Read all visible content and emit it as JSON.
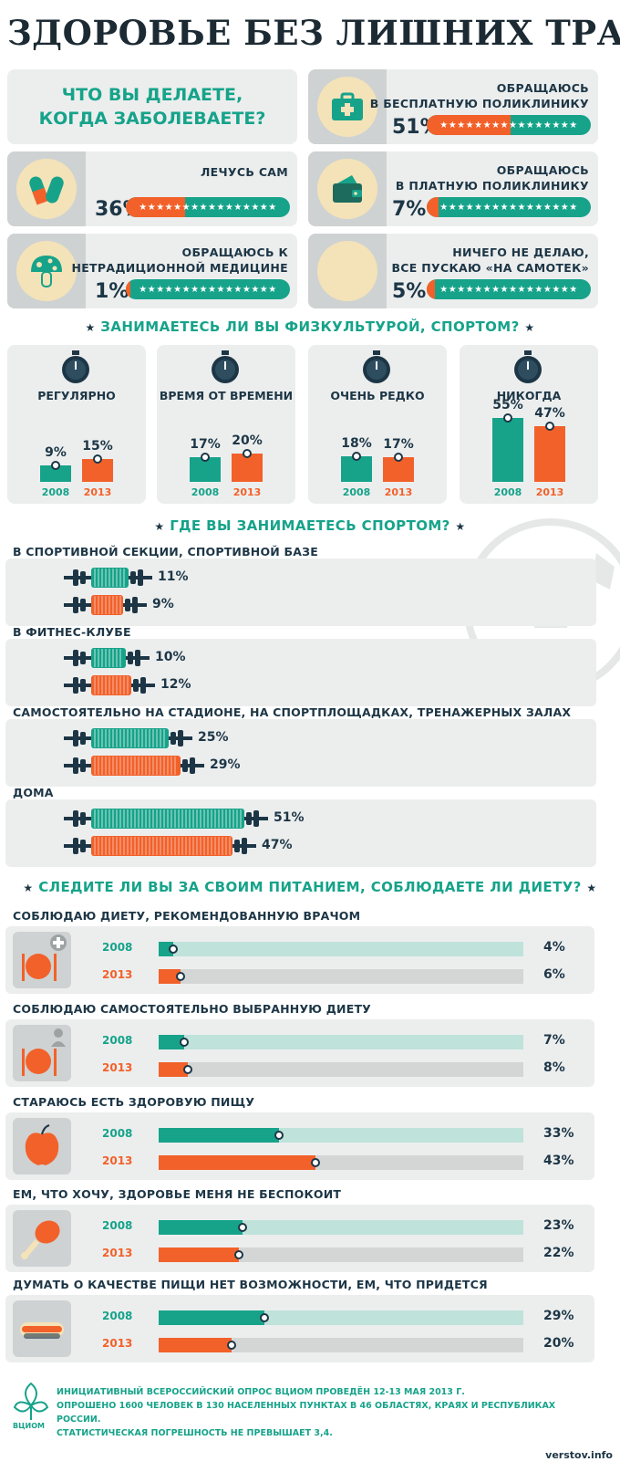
{
  "title": "ЗДОРОВЬЕ БЕЗ ЛИШНИХ ТРАТ",
  "illness": {
    "question": "ЧТО ВЫ ДЕЛАЕТЕ, КОГДА ЗАБОЛЕВАЕТЕ?",
    "question_line1": "ЧТО ВЫ ДЕЛАЕТЕ,",
    "question_line2": "КОГДА ЗАБОЛЕВАЕТЕ?",
    "items": [
      {
        "label1": "ОБРАЩАЮСЬ",
        "label2": "В БЕСПЛАТНУЮ ПОЛИКЛИНИКУ",
        "pct": "51%",
        "value": 51,
        "icon": "first-aid-kit-icon"
      },
      {
        "label1": "",
        "label2": "ЛЕЧУСЬ САМ",
        "pct": "36%",
        "value": 36,
        "icon": "pills-icon"
      },
      {
        "label1": "ОБРАЩАЮСЬ",
        "label2": "В ПЛАТНУЮ ПОЛИКЛИНИКУ",
        "pct": "7%",
        "value": 7,
        "icon": "wallet-icon"
      },
      {
        "label1": "ОБРАЩАЮСЬ К",
        "label2": "НЕТРАДИЦИОННОЙ МЕДИЦИНЕ",
        "pct": "1%",
        "value": 1,
        "icon": "mushroom-icon"
      },
      {
        "label1": "НИЧЕГО НЕ ДЕЛАЮ,",
        "label2": "ВСЕ ПУСКАЮ «НА САМОТЕК»",
        "pct": "5%",
        "value": 5,
        "icon": "empty-circle-icon"
      }
    ]
  },
  "sport": {
    "title": "ЗАНИМАЕТЕСЬ ЛИ ВЫ ФИЗКУЛЬТУРОЙ, СПОРТОМ?",
    "year_a": "2008",
    "year_b": "2013",
    "groups": [
      {
        "label": "РЕГУЛЯРНО",
        "v2008": 9,
        "v2013": 15,
        "t2008": "9%",
        "t2013": "15%"
      },
      {
        "label": "ВРЕМЯ ОТ ВРЕМЕНИ",
        "v2008": 17,
        "v2013": 20,
        "t2008": "17%",
        "t2013": "20%"
      },
      {
        "label": "ОЧЕНЬ РЕДКО",
        "v2008": 18,
        "v2013": 17,
        "t2008": "18%",
        "t2013": "17%"
      },
      {
        "label": "НИКОГДА",
        "v2008": 55,
        "v2013": 47,
        "t2008": "55%",
        "t2013": "47%"
      }
    ]
  },
  "places": {
    "title": "ГДЕ ВЫ ЗАНИМАЕТЕСЬ СПОРТОМ?",
    "groups": [
      {
        "label": "В СПОРТИВНОЙ СЕКЦИИ, СПОРТИВНОЙ БАЗЕ",
        "v2008": 11,
        "v2013": 9,
        "t2008": "11%",
        "t2013": "9%"
      },
      {
        "label": "В ФИТНЕС-КЛУБЕ",
        "v2008": 10,
        "v2013": 12,
        "t2008": "10%",
        "t2013": "12%"
      },
      {
        "label": "САМОСТОЯТЕЛЬНО НА СТАДИОНЕ, НА СПОРТПЛОЩАДКАХ, ТРЕНАЖЕРНЫХ ЗАЛАХ",
        "v2008": 25,
        "v2013": 29,
        "t2008": "25%",
        "t2013": "29%"
      },
      {
        "label": "ДОМА",
        "v2008": 51,
        "v2013": 47,
        "t2008": "51%",
        "t2013": "47%"
      }
    ]
  },
  "diet": {
    "title": "СЛЕДИТЕ ЛИ ВЫ ЗА СВОИМ ПИТАНИЕМ, СОБЛЮДАЕТЕ ЛИ ДИЕТУ?",
    "groups": [
      {
        "label": "СОБЛЮДАЮ ДИЕТУ, РЕКОМЕНДОВАННУЮ ВРАЧОМ",
        "v2008": 4,
        "v2013": 6,
        "t2008": "4%",
        "t2013": "6%",
        "icon": "plate-plus-icon"
      },
      {
        "label": "СОБЛЮДАЮ САМОСТОЯТЕЛЬНО ВЫБРАННУЮ ДИЕТУ",
        "v2008": 7,
        "v2013": 8,
        "t2008": "7%",
        "t2013": "8%",
        "icon": "plate-person-icon"
      },
      {
        "label": "СТАРАЮСЬ ЕСТЬ ЗДОРОВУЮ ПИЩУ",
        "v2008": 33,
        "v2013": 43,
        "t2008": "33%",
        "t2013": "43%",
        "icon": "apple-icon"
      },
      {
        "label": "ЕМ, ЧТО ХОЧУ, ЗДОРОВЬЕ МЕНЯ НЕ БЕСПОКОИТ",
        "v2008": 23,
        "v2013": 22,
        "t2008": "23%",
        "t2013": "22%",
        "icon": "chicken-leg-icon"
      },
      {
        "label": "ДУМАТЬ О КАЧЕСТВЕ ПИЩИ НЕТ ВОЗМОЖНОСТИ, ЕМ, ЧТО ПРИДЕТСЯ",
        "v2008": 29,
        "v2013": 20,
        "t2008": "29%",
        "t2013": "20%",
        "icon": "hotdog-icon"
      }
    ]
  },
  "footer": {
    "line1": "ИНИЦИАТИВНЫЙ ВСЕРОССИЙСКИЙ ОПРОС ВЦИОМ ПРОВЕДЁН 12-13 МАЯ 2013 г.",
    "line2": "ОПРОШЕНО 1600 ЧЕЛОВЕК В 130 НАСЕЛЕННЫХ ПУНКТАХ В 46 ОБЛАСТЯХ, КРАЯХ И РЕСПУБЛИКАХ РОССИИ.",
    "line3": "СТАТИСТИЧЕСКАЯ ПОГРЕШНОСТЬ НЕ ПРЕВЫШАЕТ 3,4.",
    "logo_text": "ВЦИОМ",
    "watermark": "verstov.info"
  },
  "colors": {
    "teal": "#16a38a",
    "orange": "#f2612a",
    "navy": "#1d3646",
    "panel": "#eceeee"
  },
  "chart_data": [
    {
      "type": "bar",
      "title": "ЧТО ВЫ ДЕЛАЕТЕ, КОГДА ЗАБОЛЕВАЕТЕ?",
      "categories": [
        "ОБРАЩАЮСЬ В БЕСПЛАТНУЮ ПОЛИКЛИНИКУ",
        "ЛЕЧУСЬ САМ",
        "ОБРАЩАЮСЬ В ПЛАТНУЮ ПОЛИКЛИНИКУ",
        "ОБРАЩАЮСЬ К НЕТРАДИЦИОННОЙ МЕДИЦИНЕ",
        "НИЧЕГО НЕ ДЕЛАЮ, ВСЕ ПУСКАЮ «НА САМОТЕК»"
      ],
      "values": [
        51,
        36,
        7,
        1,
        5
      ]
    },
    {
      "type": "bar",
      "title": "ЗАНИМАЕТЕСЬ ЛИ ВЫ ФИЗКУЛЬТУРОЙ, СПОРТОМ?",
      "categories": [
        "РЕГУЛЯРНО",
        "ВРЕМЯ ОТ ВРЕМЕНИ",
        "ОЧЕНЬ РЕДКО",
        "НИКОГДА"
      ],
      "series": [
        {
          "name": "2008",
          "values": [
            9,
            17,
            18,
            55
          ]
        },
        {
          "name": "2013",
          "values": [
            15,
            20,
            17,
            47
          ]
        }
      ]
    },
    {
      "type": "bar",
      "title": "ГДЕ ВЫ ЗАНИМАЕТЕСЬ СПОРТОМ?",
      "categories": [
        "В СПОРТИВНОЙ СЕКЦИИ, СПОРТИВНОЙ БАЗЕ",
        "В ФИТНЕС-КЛУБЕ",
        "САМОСТОЯТЕЛЬНО НА СТАДИОНЕ, НА СПОРТПЛОЩАДКАХ, ТРЕНАЖЕРНЫХ ЗАЛАХ",
        "ДОМА"
      ],
      "series": [
        {
          "name": "2008",
          "values": [
            11,
            10,
            25,
            51
          ]
        },
        {
          "name": "2013",
          "values": [
            9,
            12,
            29,
            47
          ]
        }
      ]
    },
    {
      "type": "bar",
      "title": "СЛЕДИТЕ ЛИ ВЫ ЗА СВОИМ ПИТАНИЕМ, СОБЛЮДАЕТЕ ЛИ ДИЕТУ?",
      "categories": [
        "СОБЛЮДАЮ ДИЕТУ, РЕКОМЕНДОВАННУЮ ВРАЧОМ",
        "СОБЛЮДАЮ САМОСТОЯТЕЛЬНО ВЫБРАННУЮ ДИЕТУ",
        "СТАРАЮСЬ ЕСТЬ ЗДОРОВУЮ ПИЩУ",
        "ЕМ, ЧТО ХОЧУ, ЗДОРОВЬЕ МЕНЯ НЕ БЕСПОКОИТ",
        "ДУМАТЬ О КАЧЕСТВЕ ПИЩИ НЕТ ВОЗМОЖНОСТИ, ЕМ, ЧТО ПРИДЕТСЯ"
      ],
      "series": [
        {
          "name": "2008",
          "values": [
            4,
            7,
            33,
            23,
            29
          ]
        },
        {
          "name": "2013",
          "values": [
            6,
            8,
            43,
            22,
            20
          ]
        }
      ]
    }
  ]
}
